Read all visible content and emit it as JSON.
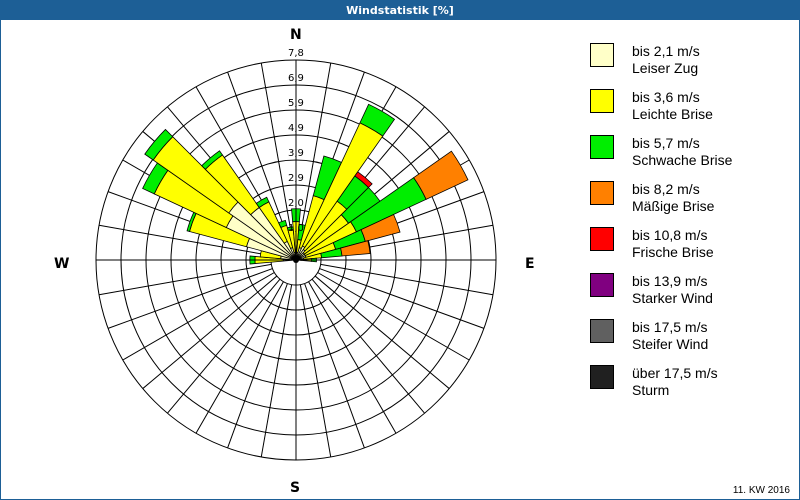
{
  "title": "Windstatistik [%]",
  "footer": "11. KW 2016",
  "compass": {
    "n": "N",
    "e": "E",
    "s": "S",
    "w": "W"
  },
  "legend": [
    {
      "range": "bis 2,1 m/s",
      "name": "Leiser Zug",
      "color": "#ffffc8"
    },
    {
      "range": "bis 3,6 m/s",
      "name": "Leichte Brise",
      "color": "#ffff00"
    },
    {
      "range": "bis 5,7 m/s",
      "name": "Schwache Brise",
      "color": "#00ee00"
    },
    {
      "range": "bis 8,2 m/s",
      "name": "Mäßige Brise",
      "color": "#ff8000"
    },
    {
      "range": "bis 10,8 m/s",
      "name": "Frische Brise",
      "color": "#ff0000"
    },
    {
      "range": "bis 13,9 m/s",
      "name": "Starker Wind",
      "color": "#800080"
    },
    {
      "range": "bis 17,5 m/s",
      "name": "Steifer Wind",
      "color": "#606060"
    },
    {
      "range": "über 17,5 m/s",
      "name": "Sturm",
      "color": "#202020"
    }
  ],
  "chart_data": {
    "type": "wind-rose",
    "title": "Windstatistik [%]",
    "subtitle": "11. KW 2016",
    "radial_ticks": [
      "1,0",
      "2,0",
      "2,9",
      "3,9",
      "4,9",
      "5,9",
      "6,9",
      "7,8"
    ],
    "radial_max": 7.8,
    "unit": "%",
    "series_names": [
      "bis 2,1 m/s",
      "bis 3,6 m/s",
      "bis 5,7 m/s",
      "bis 8,2 m/s",
      "bis 10,8 m/s",
      "bis 13,9 m/s",
      "bis 17,5 m/s",
      "über 17,5 m/s"
    ],
    "directions_deg": [
      270,
      280,
      290,
      300,
      310,
      320,
      330,
      340,
      350,
      0,
      10,
      20,
      30,
      40,
      50,
      60,
      70,
      80,
      90
    ],
    "sectors": [
      {
        "deg": 270,
        "cumulative": [
          0.5,
          1.6,
          1.8
        ]
      },
      {
        "deg": 280,
        "cumulative": [
          0.6,
          1.4,
          1.4
        ]
      },
      {
        "deg": 290,
        "cumulative": [
          2.0,
          4.3,
          4.4
        ]
      },
      {
        "deg": 300,
        "cumulative": [
          3.0,
          6.1,
          6.6
        ]
      },
      {
        "deg": 310,
        "cumulative": [
          3.2,
          6.8,
          7.2
        ]
      },
      {
        "deg": 320,
        "cumulative": [
          2.5,
          5.0,
          5.2
        ]
      },
      {
        "deg": 330,
        "cumulative": [
          0.8,
          2.5,
          2.7
        ]
      },
      {
        "deg": 340,
        "cumulative": [
          0.5,
          1.4,
          1.6
        ]
      },
      {
        "deg": 350,
        "cumulative": [
          0.3,
          1.2,
          1.3
        ]
      },
      {
        "deg": 0,
        "cumulative": [
          0.4,
          1.5,
          2.0
        ]
      },
      {
        "deg": 10,
        "cumulative": [
          0.3,
          0.8,
          1.4
        ]
      },
      {
        "deg": 20,
        "cumulative": [
          0.5,
          2.6,
          4.2
        ]
      },
      {
        "deg": 30,
        "cumulative": [
          0.6,
          5.9,
          6.7
        ]
      },
      {
        "deg": 40,
        "cumulative": [
          0.5,
          2.8,
          4.0,
          4.0,
          4.2
        ]
      },
      {
        "deg": 50,
        "cumulative": [
          0.4,
          2.5,
          4.0
        ]
      },
      {
        "deg": 60,
        "cumulative": [
          0.4,
          2.6,
          5.6,
          7.4
        ]
      },
      {
        "deg": 70,
        "cumulative": [
          0.4,
          1.6,
          2.8,
          4.2
        ]
      },
      {
        "deg": 80,
        "cumulative": [
          0.3,
          1.0,
          1.8,
          2.9
        ]
      },
      {
        "deg": 90,
        "cumulative": [
          0.2,
          0.6,
          0.8
        ]
      }
    ]
  }
}
